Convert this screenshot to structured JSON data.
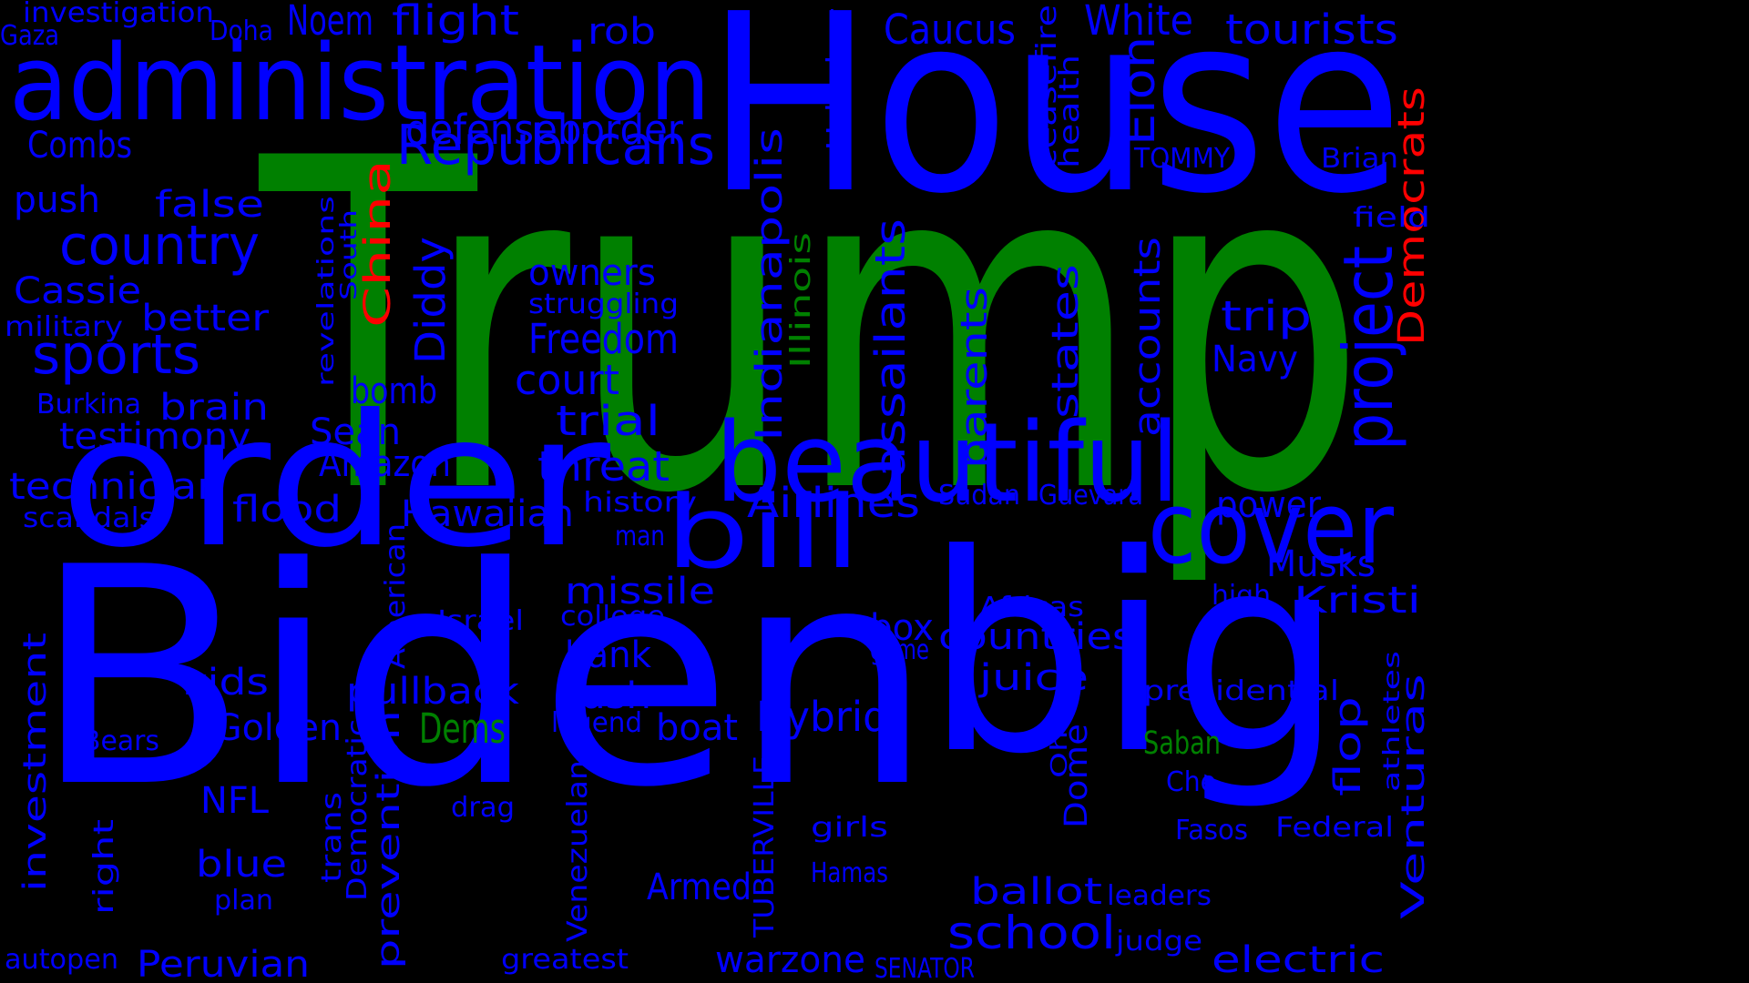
{
  "colors": {
    "background": "#000000",
    "blue": "#0000ff",
    "green": "#008000",
    "red": "#ff0000"
  },
  "words": [
    {
      "text": "Trump",
      "color": "green"
    },
    {
      "text": "House",
      "color": "blue"
    },
    {
      "text": "Biden",
      "color": "blue"
    },
    {
      "text": "big",
      "color": "blue"
    },
    {
      "text": "order",
      "color": "blue"
    },
    {
      "text": "administration",
      "color": "blue"
    },
    {
      "text": "beautiful",
      "color": "blue"
    },
    {
      "text": "bill",
      "color": "blue"
    },
    {
      "text": "cover",
      "color": "blue"
    },
    {
      "text": "Republicans",
      "color": "blue"
    },
    {
      "text": "country",
      "color": "blue"
    },
    {
      "text": "sports",
      "color": "blue"
    },
    {
      "text": "defenseborder",
      "color": "blue"
    },
    {
      "text": "Indianapolis",
      "color": "blue"
    },
    {
      "text": "Airlines",
      "color": "blue"
    },
    {
      "text": "project",
      "color": "blue"
    },
    {
      "text": "Democrats",
      "color": "red"
    },
    {
      "text": "China",
      "color": "red"
    },
    {
      "text": "Illinois",
      "color": "green"
    },
    {
      "text": "Dems",
      "color": "green"
    },
    {
      "text": "Saban",
      "color": "green"
    },
    {
      "text": "investigation",
      "color": "blue"
    },
    {
      "text": "Gaza",
      "color": "blue"
    },
    {
      "text": "Doha",
      "color": "blue"
    },
    {
      "text": "Noem",
      "color": "blue"
    },
    {
      "text": "flight",
      "color": "blue"
    },
    {
      "text": "rob",
      "color": "blue"
    },
    {
      "text": "Urlacher",
      "color": "blue"
    },
    {
      "text": "Caucus",
      "color": "blue"
    },
    {
      "text": "ceasefire",
      "color": "blue"
    },
    {
      "text": "health",
      "color": "blue"
    },
    {
      "text": "White",
      "color": "blue"
    },
    {
      "text": "Elon",
      "color": "blue"
    },
    {
      "text": "tourists",
      "color": "blue"
    },
    {
      "text": "TOMMY",
      "color": "blue"
    },
    {
      "text": "Brian",
      "color": "blue"
    },
    {
      "text": "field",
      "color": "blue"
    },
    {
      "text": "Combs",
      "color": "blue"
    },
    {
      "text": "push",
      "color": "blue"
    },
    {
      "text": "false",
      "color": "blue"
    },
    {
      "text": "revelations",
      "color": "blue"
    },
    {
      "text": "South",
      "color": "blue"
    },
    {
      "text": "Diddy",
      "color": "blue"
    },
    {
      "text": "owners",
      "color": "blue"
    },
    {
      "text": "struggling",
      "color": "blue"
    },
    {
      "text": "Freedom",
      "color": "blue"
    },
    {
      "text": "assailants",
      "color": "blue"
    },
    {
      "text": "parents",
      "color": "blue"
    },
    {
      "text": "states",
      "color": "blue"
    },
    {
      "text": "accounts",
      "color": "blue"
    },
    {
      "text": "trip",
      "color": "blue"
    },
    {
      "text": "Navy",
      "color": "blue"
    },
    {
      "text": "Cassie",
      "color": "blue"
    },
    {
      "text": "military",
      "color": "blue"
    },
    {
      "text": "better",
      "color": "blue"
    },
    {
      "text": "court",
      "color": "blue"
    },
    {
      "text": "trial",
      "color": "blue"
    },
    {
      "text": "Burkina",
      "color": "blue"
    },
    {
      "text": "brain",
      "color": "blue"
    },
    {
      "text": "bomb",
      "color": "blue"
    },
    {
      "text": "Sean",
      "color": "blue"
    },
    {
      "text": "testimony",
      "color": "blue"
    },
    {
      "text": "Amazon",
      "color": "blue"
    },
    {
      "text": "threat",
      "color": "blue"
    },
    {
      "text": "technician",
      "color": "blue"
    },
    {
      "text": "scandals",
      "color": "blue"
    },
    {
      "text": "flood",
      "color": "blue"
    },
    {
      "text": "Hawaiian",
      "color": "blue"
    },
    {
      "text": "history",
      "color": "blue"
    },
    {
      "text": "man",
      "color": "blue"
    },
    {
      "text": "Sudan",
      "color": "blue"
    },
    {
      "text": "Guevara",
      "color": "blue"
    },
    {
      "text": "power",
      "color": "blue"
    },
    {
      "text": "Musks",
      "color": "blue"
    },
    {
      "text": "Kristi",
      "color": "blue"
    },
    {
      "text": "missile",
      "color": "blue"
    },
    {
      "text": "Israel",
      "color": "blue"
    },
    {
      "text": "college",
      "color": "blue"
    },
    {
      "text": "Africas",
      "color": "blue"
    },
    {
      "text": "high",
      "color": "blue"
    },
    {
      "text": "box",
      "color": "blue"
    },
    {
      "text": "countries",
      "color": "blue"
    },
    {
      "text": "American",
      "color": "blue"
    },
    {
      "text": "bank",
      "color": "blue"
    },
    {
      "text": "game",
      "color": "blue"
    },
    {
      "text": "kids",
      "color": "blue"
    },
    {
      "text": "pullback",
      "color": "blue"
    },
    {
      "text": "tush",
      "color": "blue"
    },
    {
      "text": "juice",
      "color": "blue"
    },
    {
      "text": "presidential",
      "color": "blue"
    },
    {
      "text": "investment",
      "color": "blue"
    },
    {
      "text": "Golden",
      "color": "blue"
    },
    {
      "text": "Hybrid",
      "color": "blue"
    },
    {
      "text": "legend",
      "color": "blue"
    },
    {
      "text": "boat",
      "color": "blue"
    },
    {
      "text": "Ohio",
      "color": "blue"
    },
    {
      "text": "Dome",
      "color": "blue"
    },
    {
      "text": "flop",
      "color": "blue"
    },
    {
      "text": "athletes",
      "color": "blue"
    },
    {
      "text": "Venturas",
      "color": "blue"
    },
    {
      "text": "Bears",
      "color": "blue"
    },
    {
      "text": "NFL",
      "color": "blue"
    },
    {
      "text": "prevention",
      "color": "blue"
    },
    {
      "text": "drag",
      "color": "blue"
    },
    {
      "text": "Democratic",
      "color": "blue"
    },
    {
      "text": "trans",
      "color": "blue"
    },
    {
      "text": "Venezuelan",
      "color": "blue"
    },
    {
      "text": "TUBERVILLE",
      "color": "blue"
    },
    {
      "text": "girls",
      "color": "blue"
    },
    {
      "text": "Che",
      "color": "blue"
    },
    {
      "text": "Fasos",
      "color": "blue"
    },
    {
      "text": "Federal",
      "color": "blue"
    },
    {
      "text": "right",
      "color": "blue"
    },
    {
      "text": "blue",
      "color": "blue"
    },
    {
      "text": "plan",
      "color": "blue"
    },
    {
      "text": "Armed",
      "color": "blue"
    },
    {
      "text": "Hamas",
      "color": "blue"
    },
    {
      "text": "ballot",
      "color": "blue"
    },
    {
      "text": "leaders",
      "color": "blue"
    },
    {
      "text": "school",
      "color": "blue"
    },
    {
      "text": "judge",
      "color": "blue"
    },
    {
      "text": "autopen",
      "color": "blue"
    },
    {
      "text": "Peruvian",
      "color": "blue"
    },
    {
      "text": "greatest",
      "color": "blue"
    },
    {
      "text": "warzone",
      "color": "blue"
    },
    {
      "text": "SENATOR",
      "color": "blue"
    },
    {
      "text": "electric",
      "color": "blue"
    }
  ]
}
